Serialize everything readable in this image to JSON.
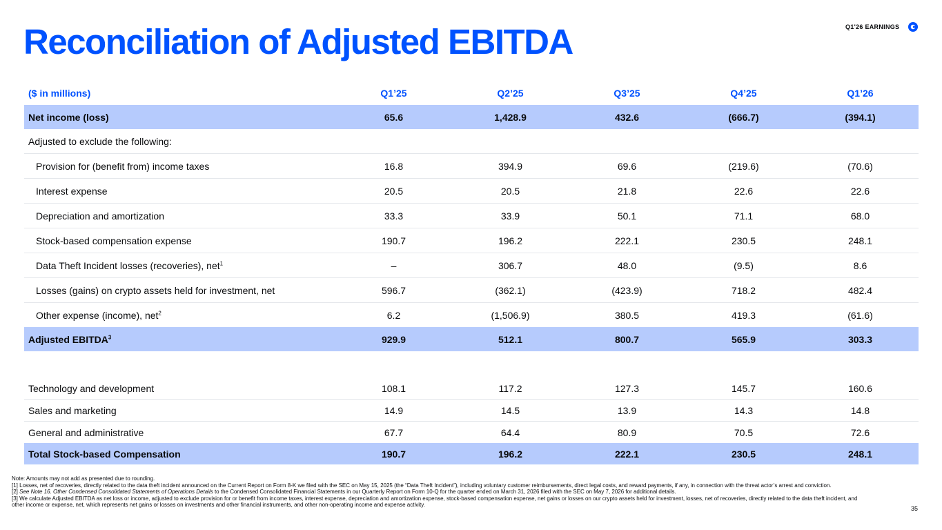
{
  "header": {
    "title": "Reconciliation of Adjusted EBITDA",
    "tag": "Q1'26 EARNINGS",
    "logo_icon": "brand-logo-icon",
    "accent_color": "#0052ff",
    "highlight_color": "#b6cbfd"
  },
  "table": {
    "columns": [
      "($ in millions)",
      "Q1’25",
      "Q2’25",
      "Q3’25",
      "Q4’25",
      "Q1’26"
    ],
    "rows": [
      {
        "label": "Net income (loss)",
        "sup": "",
        "values": [
          "65.6",
          "1,428.9",
          "432.6",
          "(666.7)",
          "(394.1)"
        ]
      },
      {
        "label": "Adjusted to exclude the following:",
        "sup": "",
        "values": [
          "",
          "",
          "",
          "",
          ""
        ]
      },
      {
        "label": "Provision for (benefit from) income taxes",
        "sup": "",
        "values": [
          "16.8",
          "394.9",
          "69.6",
          "(219.6)",
          "(70.6)"
        ]
      },
      {
        "label": "Interest expense",
        "sup": "",
        "values": [
          "20.5",
          "20.5",
          "21.8",
          "22.6",
          "22.6"
        ]
      },
      {
        "label": "Depreciation and amortization",
        "sup": "",
        "values": [
          "33.3",
          "33.9",
          "50.1",
          "71.1",
          "68.0"
        ]
      },
      {
        "label": "Stock-based compensation expense",
        "sup": "",
        "values": [
          "190.7",
          "196.2",
          "222.1",
          "230.5",
          "248.1"
        ]
      },
      {
        "label": "Data Theft Incident losses (recoveries), net",
        "sup": "1",
        "values": [
          "–",
          "306.7",
          "48.0",
          "(9.5)",
          "8.6"
        ]
      },
      {
        "label": "Losses (gains) on crypto assets held for investment, net",
        "sup": "",
        "values": [
          "596.7",
          "(362.1)",
          "(423.9)",
          "718.2",
          "482.4"
        ]
      },
      {
        "label": "Other expense (income), net",
        "sup": "2",
        "values": [
          "6.2",
          "(1,506.9)",
          "380.5",
          "419.3",
          "(61.6)"
        ]
      },
      {
        "label": "Adjusted EBITDA",
        "sup": "3",
        "values": [
          "929.9",
          "512.1",
          "800.7",
          "565.9",
          "303.3"
        ]
      },
      {
        "label": "Technology and development",
        "sup": "",
        "values": [
          "108.1",
          "117.2",
          "127.3",
          "145.7",
          "160.6"
        ]
      },
      {
        "label": "Sales and marketing",
        "sup": "",
        "values": [
          "14.9",
          "14.5",
          "13.9",
          "14.3",
          "14.8"
        ]
      },
      {
        "label": "General and administrative",
        "sup": "",
        "values": [
          "67.7",
          "64.4",
          "80.9",
          "70.5",
          "72.6"
        ]
      },
      {
        "label": "Total Stock-based Compensation",
        "sup": "",
        "values": [
          "190.7",
          "196.2",
          "222.1",
          "230.5",
          "248.1"
        ]
      }
    ]
  },
  "notes": {
    "n0": "Note: Amounts may not add as presented due to rounding.",
    "n1": "[1] Losses, net of recoveries, directly related to the data theft incident announced on the Current Report on Form 8-K we filed with the SEC on May 15, 2025 (the “Data Theft Incident”), including voluntary customer reimbursements, direct legal costs, and reward payments, if any, in connection with the threat actor’s arrest and conviction.",
    "n2_prefix": "[2] ",
    "n2_italic": "See Note 16. Other Condensed Consolidated Statements of Operations Details",
    "n2_rest": " to the Condensed Consolidated Financial Statements in our Quarterly Report on Form 10-Q for the quarter ended on March 31, 2026 filed with the SEC on May 7, 2026 for additional details.",
    "n3": "[3] We calculate Adjusted EBITDA as net loss or income, adjusted to exclude provision for or benefit from income taxes, interest expense, depreciation and amortization expense, stock-based compensation expense, net gains or losses on our crypto assets held for investment, losses, net of recoveries, directly related to the data theft incident, and other income or expense, net, which represents net gains or losses on investments and other financial instruments, and other non-operating income and expense activity."
  },
  "page_number": "35"
}
